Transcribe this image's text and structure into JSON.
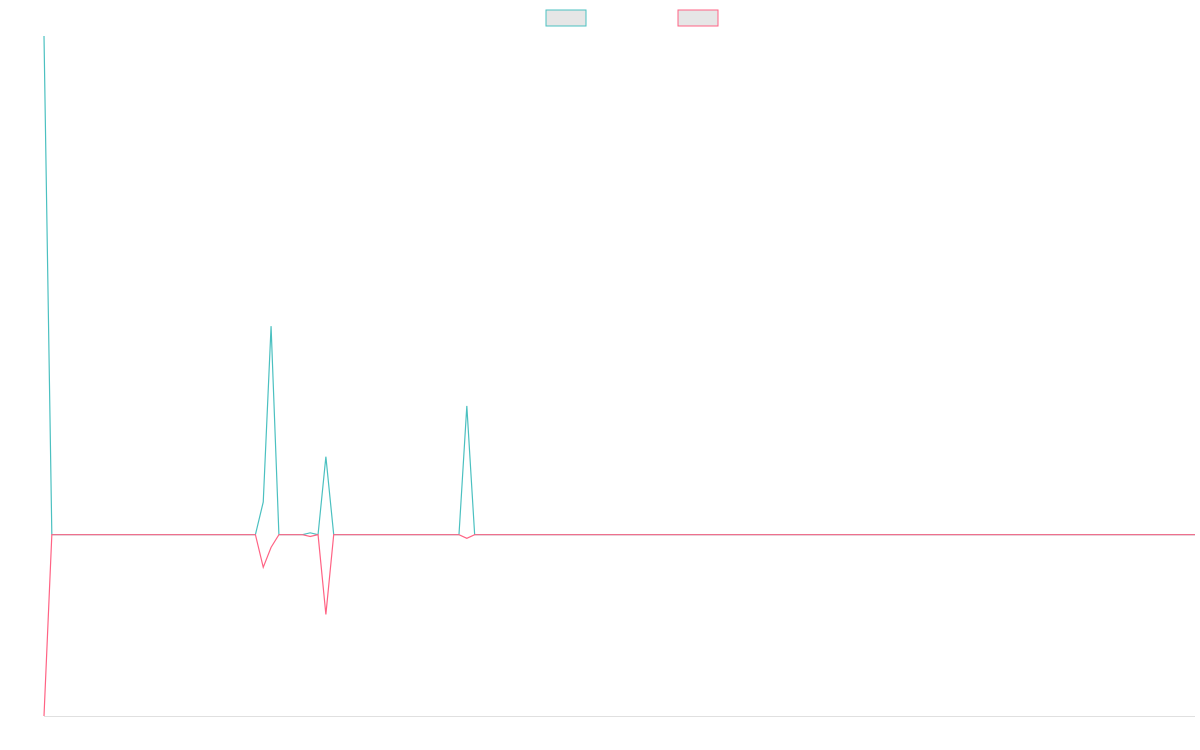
{
  "chart_data": {
    "type": "line",
    "x": [
      0,
      1,
      27,
      28,
      29,
      30,
      33,
      34,
      35,
      36,
      37,
      53,
      54,
      55,
      147
    ],
    "xlim": [
      0,
      147
    ],
    "ylim": [
      -100,
      275
    ],
    "series": [
      {
        "color": "#4bc0c0",
        "values": [
          275,
          0,
          0,
          18,
          115,
          0,
          0,
          1,
          0,
          43,
          0,
          0,
          71,
          0,
          0
        ]
      },
      {
        "color": "#ff6384",
        "values": [
          -100,
          0,
          0,
          -18,
          -7,
          0,
          0,
          -1,
          0,
          -44,
          0,
          0,
          -2,
          0,
          0
        ]
      }
    ]
  }
}
